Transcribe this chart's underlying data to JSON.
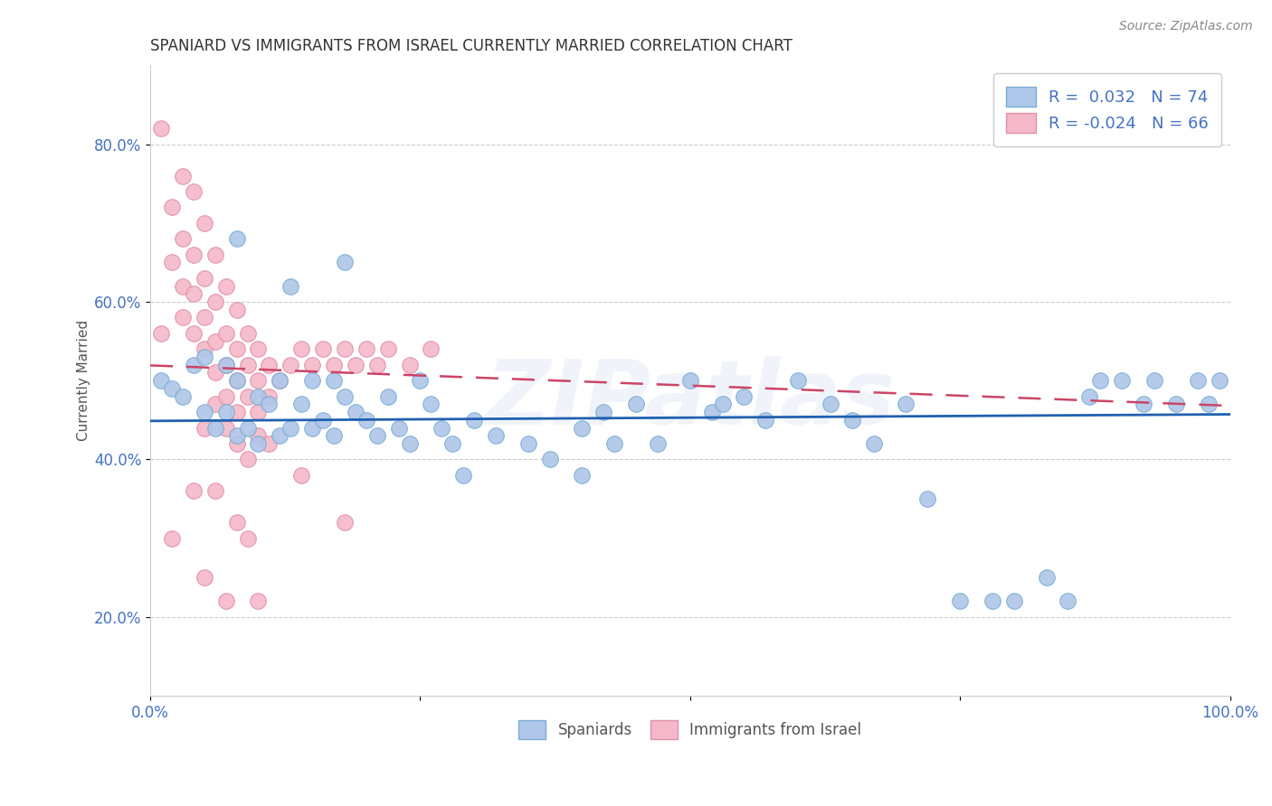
{
  "title": "SPANIARD VS IMMIGRANTS FROM ISRAEL CURRENTLY MARRIED CORRELATION CHART",
  "source": "Source: ZipAtlas.com",
  "ylabel": "Currently Married",
  "xlim": [
    0.0,
    1.0
  ],
  "ylim": [
    0.1,
    0.9
  ],
  "yticks": [
    0.2,
    0.4,
    0.6,
    0.8
  ],
  "ytick_labels": [
    "20.0%",
    "40.0%",
    "60.0%",
    "80.0%"
  ],
  "legend_R_blue": "0.032",
  "legend_N_blue": "74",
  "legend_R_pink": "-0.024",
  "legend_N_pink": "66",
  "blue_color": "#aec6e8",
  "pink_color": "#f4b8c8",
  "blue_edge": "#7aadd4",
  "pink_edge": "#e090a8",
  "trendline_blue": "#2060b0",
  "trendline_pink": "#cc4466",
  "watermark": "ZIPatlas",
  "blue_scatter_x": [
    0.01,
    0.02,
    0.03,
    0.04,
    0.05,
    0.05,
    0.06,
    0.07,
    0.07,
    0.08,
    0.08,
    0.09,
    0.1,
    0.1,
    0.11,
    0.12,
    0.12,
    0.13,
    0.14,
    0.15,
    0.15,
    0.16,
    0.17,
    0.17,
    0.18,
    0.19,
    0.2,
    0.21,
    0.22,
    0.23,
    0.24,
    0.25,
    0.26,
    0.27,
    0.28,
    0.29,
    0.3,
    0.32,
    0.35,
    0.37,
    0.4,
    0.4,
    0.42,
    0.43,
    0.45,
    0.47,
    0.5,
    0.52,
    0.53,
    0.55,
    0.57,
    0.6,
    0.63,
    0.65,
    0.67,
    0.7,
    0.72,
    0.75,
    0.78,
    0.8,
    0.83,
    0.85,
    0.87,
    0.9,
    0.92,
    0.93,
    0.95,
    0.97,
    0.98,
    0.99,
    0.08,
    0.13,
    0.18,
    0.88
  ],
  "blue_scatter_y": [
    0.5,
    0.49,
    0.48,
    0.52,
    0.53,
    0.46,
    0.44,
    0.52,
    0.46,
    0.5,
    0.43,
    0.44,
    0.48,
    0.42,
    0.47,
    0.5,
    0.43,
    0.44,
    0.47,
    0.5,
    0.44,
    0.45,
    0.5,
    0.43,
    0.48,
    0.46,
    0.45,
    0.43,
    0.48,
    0.44,
    0.42,
    0.5,
    0.47,
    0.44,
    0.42,
    0.38,
    0.45,
    0.43,
    0.42,
    0.4,
    0.44,
    0.38,
    0.46,
    0.42,
    0.47,
    0.42,
    0.5,
    0.46,
    0.47,
    0.48,
    0.45,
    0.5,
    0.47,
    0.45,
    0.42,
    0.47,
    0.35,
    0.22,
    0.22,
    0.22,
    0.25,
    0.22,
    0.48,
    0.5,
    0.47,
    0.5,
    0.47,
    0.5,
    0.47,
    0.5,
    0.68,
    0.62,
    0.65,
    0.5
  ],
  "pink_scatter_x": [
    0.01,
    0.01,
    0.02,
    0.02,
    0.03,
    0.03,
    0.03,
    0.03,
    0.04,
    0.04,
    0.04,
    0.04,
    0.05,
    0.05,
    0.05,
    0.05,
    0.06,
    0.06,
    0.06,
    0.06,
    0.06,
    0.07,
    0.07,
    0.07,
    0.07,
    0.08,
    0.08,
    0.08,
    0.08,
    0.09,
    0.09,
    0.09,
    0.1,
    0.1,
    0.1,
    0.11,
    0.11,
    0.12,
    0.13,
    0.14,
    0.15,
    0.16,
    0.17,
    0.18,
    0.19,
    0.2,
    0.21,
    0.22,
    0.24,
    0.26,
    0.05,
    0.07,
    0.08,
    0.09,
    0.1,
    0.11,
    0.04,
    0.06,
    0.08,
    0.09,
    0.02,
    0.05,
    0.07,
    0.1,
    0.14,
    0.18
  ],
  "pink_scatter_y": [
    0.82,
    0.56,
    0.72,
    0.65,
    0.76,
    0.68,
    0.62,
    0.58,
    0.74,
    0.66,
    0.61,
    0.56,
    0.7,
    0.63,
    0.58,
    0.54,
    0.66,
    0.6,
    0.55,
    0.51,
    0.47,
    0.62,
    0.56,
    0.52,
    0.48,
    0.59,
    0.54,
    0.5,
    0.46,
    0.56,
    0.52,
    0.48,
    0.54,
    0.5,
    0.46,
    0.52,
    0.48,
    0.5,
    0.52,
    0.54,
    0.52,
    0.54,
    0.52,
    0.54,
    0.52,
    0.54,
    0.52,
    0.54,
    0.52,
    0.54,
    0.44,
    0.44,
    0.42,
    0.4,
    0.43,
    0.42,
    0.36,
    0.36,
    0.32,
    0.3,
    0.3,
    0.25,
    0.22,
    0.22,
    0.38,
    0.32
  ]
}
